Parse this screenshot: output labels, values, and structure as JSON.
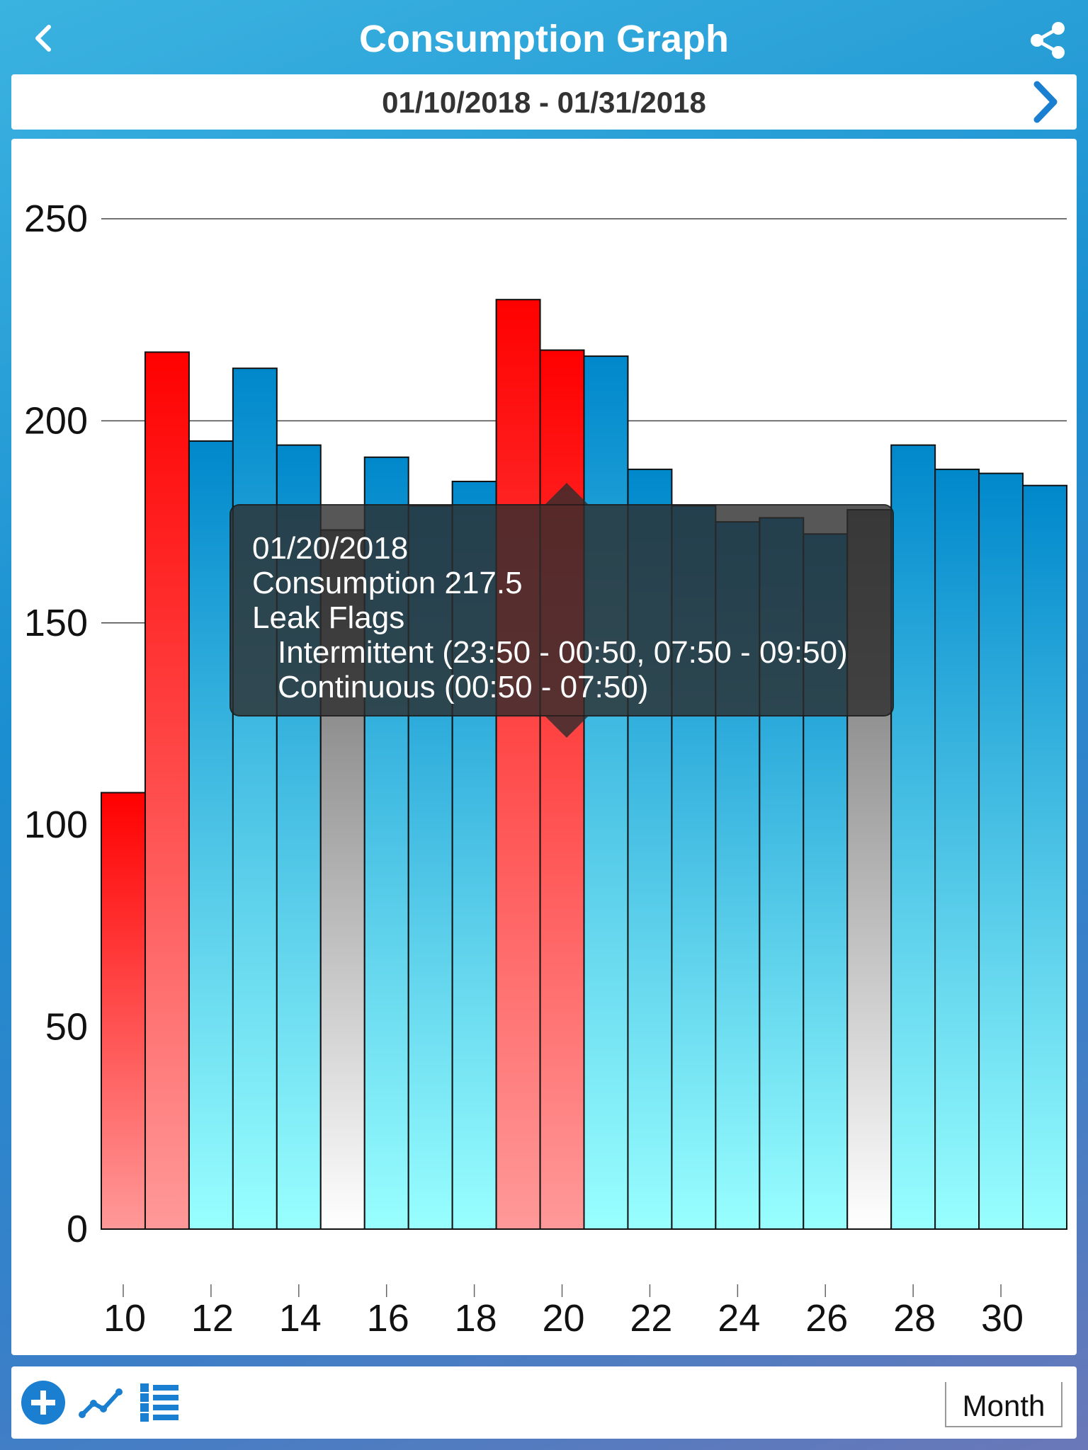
{
  "header": {
    "title": "Consumption Graph",
    "back_icon": "chevron-left-icon",
    "share_icon": "share-icon"
  },
  "date_range": {
    "label": "01/10/2018 - 01/31/2018",
    "next_icon": "chevron-right-icon"
  },
  "tooltip": {
    "date": "01/20/2018",
    "consumption": "Consumption 217.5",
    "leak_title": "Leak Flags",
    "intermittent": "Intermittent (23:50 - 00:50, 07:50 - 09:50)",
    "continuous": "Continuous (00:50 - 07:50)"
  },
  "toolbar": {
    "add_icon": "plus-circle-icon",
    "chart_icon": "line-chart-icon",
    "list_icon": "list-icon",
    "period_label": "Month"
  },
  "colors": {
    "blue_top": "#0088cc",
    "blue_bottom": "#99ffff",
    "red_top": "#ff0000",
    "red_bottom": "#ff9999",
    "gray_top": "#666666",
    "gray_bottom": "#ffffff",
    "accent": "#1a7fd0"
  },
  "chart_data": {
    "type": "bar",
    "x": [
      10,
      11,
      12,
      13,
      14,
      15,
      16,
      17,
      18,
      19,
      20,
      21,
      22,
      23,
      24,
      25,
      26,
      27,
      28,
      29,
      30,
      31
    ],
    "values": [
      108,
      217,
      195,
      213,
      194,
      173,
      191,
      179,
      185,
      230,
      217.5,
      216,
      188,
      179,
      175,
      176,
      172,
      178,
      194,
      188,
      187,
      184
    ],
    "status": [
      "leak",
      "leak",
      "normal",
      "normal",
      "normal",
      "estimated",
      "normal",
      "normal",
      "normal",
      "leak",
      "leak",
      "normal",
      "normal",
      "normal",
      "normal",
      "normal",
      "normal",
      "estimated",
      "normal",
      "normal",
      "normal",
      "normal"
    ],
    "xticks": [
      10,
      12,
      14,
      16,
      18,
      20,
      22,
      24,
      26,
      28,
      30
    ],
    "yticks": [
      0,
      50,
      100,
      150,
      200,
      250
    ],
    "ylim": [
      0,
      250
    ],
    "grid": true,
    "title": "",
    "xlabel": "",
    "ylabel": ""
  }
}
